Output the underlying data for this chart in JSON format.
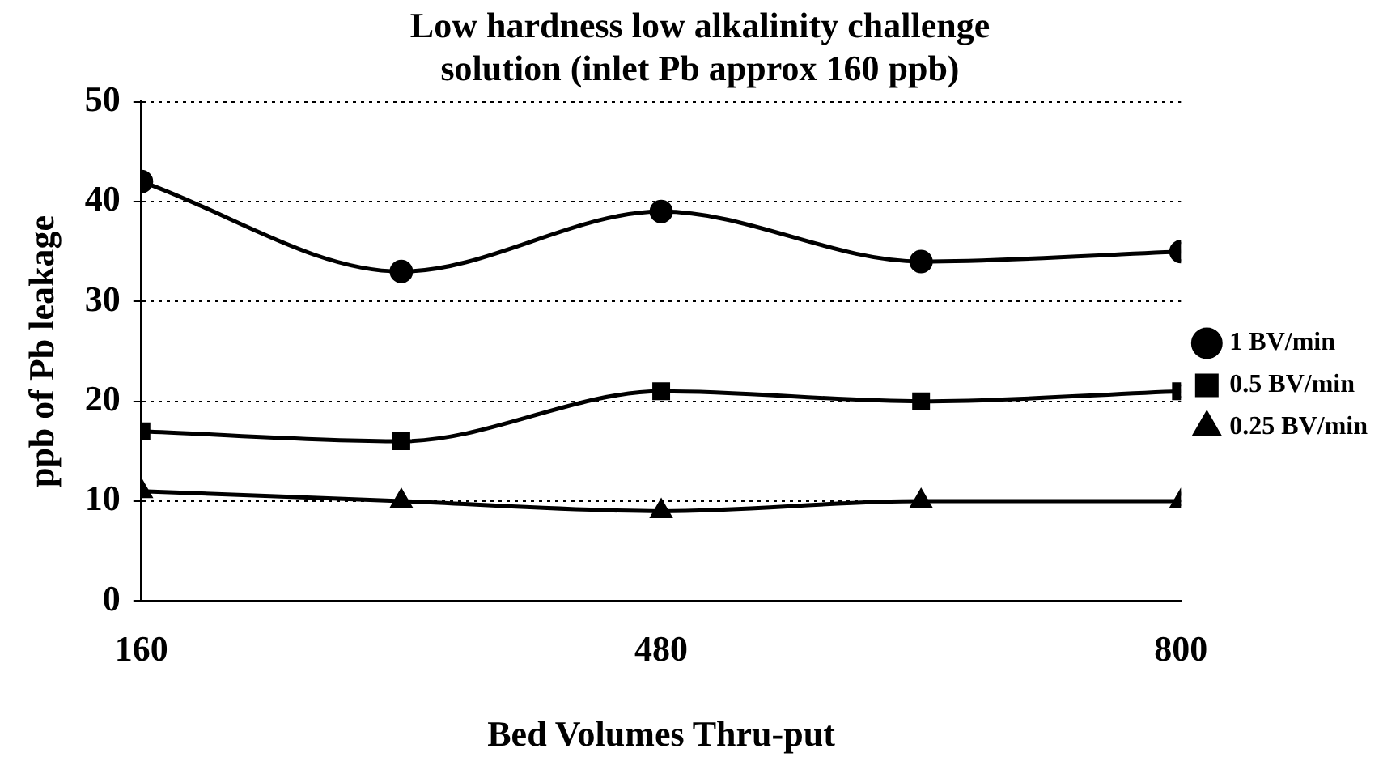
{
  "chart_data": {
    "type": "line",
    "title": [
      "Low hardness low alkalinity challenge",
      "solution (inlet Pb approx 160 ppb)"
    ],
    "xlabel": "Bed Volumes Thru-put",
    "ylabel": "ppb of Pb leakage",
    "x": [
      160,
      320,
      480,
      640,
      800
    ],
    "series": [
      {
        "name": "1 BV/min",
        "color": "#000000",
        "marker": "circle",
        "values": [
          42,
          33,
          39,
          34,
          35
        ]
      },
      {
        "name": "0.5 BV/min",
        "color": "#000000",
        "marker": "square",
        "values": [
          17,
          16,
          21,
          20,
          21
        ]
      },
      {
        "name": "0.25 BV/min",
        "color": "#000000",
        "marker": "triangle",
        "values": [
          11,
          10,
          9,
          10,
          10
        ]
      }
    ],
    "xlim": [
      160,
      800
    ],
    "xticks": [
      160,
      480,
      800
    ],
    "ylim": [
      0,
      50
    ],
    "yticks": [
      0,
      10,
      20,
      30,
      40,
      50
    ],
    "grid": "y",
    "legend": "right",
    "line_style": "solid"
  }
}
